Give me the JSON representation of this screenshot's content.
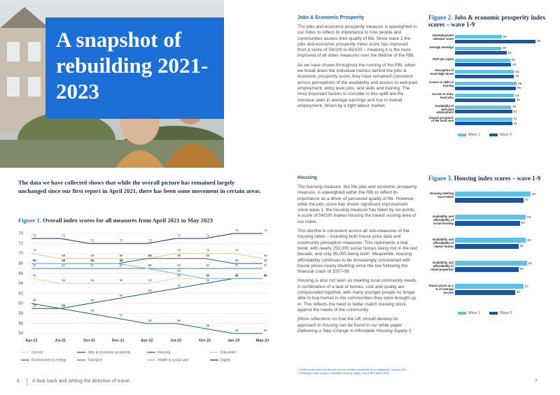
{
  "cover": {
    "title": "A snapshot of rebuilding 2021-2023"
  },
  "intro": "The data we have collected shows that while the overall picture has remained largely unchanged since our first report in April 2021, there has been some movement in certain areas.",
  "jobs_section": {
    "heading": "Jobs & Economic Prosperity",
    "paragraphs": [
      "The jobs and economic prosperity measure is upweighted in our index to reflect its importance to how people and communities assess their quality of life. Since wave 1 the jobs and economic prosperity index score has improved from a score of 59/100 to 65/100 – meaning it is the most improved of all index measures over the lifetime of the RBI.",
      "As we have shown throughout the running of the RBI, when we break down the individual metrics behind the jobs & economic prosperity score, they have remained consistent across perceptions of the availability and access to well-paid employment, entry level jobs, and skills and training. The most important factors to consider in this uplift are the increase seen in average earnings and rise in overall employment, driven by a tight labour market."
    ]
  },
  "housing_section": {
    "heading": "Housing",
    "paragraphs": [
      "The housing measure, like the jobs and economic prosperity measure, is upweighted within the RBI to reflect its importance as a driver of perceived quality of life. However, while the jobs score has shown significant improvement since wave 1, the housing measure has fallen by six-points. A score of 54/100 makes housing the lowest scoring area of our index.",
      "This decline is consistent across all sub-measures of the housing index – including both house price data and community perception measures. This represents a real trend, with nearly 250,000 social homes being lost in the last decade, and only 85,000 being built¹. Meanwhile, housing affordability continues to be increasingly constrained with house prices nearly doubling since the low following the financial crash of 2007-08.",
      "Housing is also not seen as meeting local community needs. A combination of a lack of homes, cost and quality are compounded together, with many younger people no longer able to buy homes in the communities they were brought up in. This reflects the need to better match housing stock against the needs of the community.",
      "[More reflections on how the UK should develop its approach to housing can be found in our white paper Delivering a Step-Change in Affordable Housing Supply.²]"
    ]
  },
  "footnotes": [
    "¹ 14,000 social homes lost last year as over a million households sit on waiting lists, January 2023",
    "² Delivering a Step Change in Affordable Housing Supply, L&Q & BPF March 2023"
  ],
  "footer": {
    "left_page_number": "6",
    "left_text": "A look back and setting the direction of travel",
    "right_page_number": "7"
  },
  "chart_data": [
    {
      "type": "line",
      "figure_label": "Figure 1.",
      "title": "Overall index scores for all measures from April 2021 to May 2023",
      "categories": [
        "Apr-21",
        "Jul-21",
        "Oct-21",
        "Dec-21",
        "Apr-22",
        "Jul-22",
        "Oct-22",
        "Jan-23",
        "May-23"
      ],
      "ylim": [
        54,
        74
      ],
      "yticks": [
        54,
        56,
        58,
        60,
        62,
        64,
        66,
        68,
        70,
        72,
        74
      ],
      "grid": true,
      "series": [
        {
          "name": "Overall",
          "color": "#c9b45c",
          "dashed": true,
          "values": [
            65,
            64,
            64,
            64,
            64,
            65,
            65,
            65,
            65
          ]
        },
        {
          "name": "Jobs & economic prosperity",
          "color": "#1f4e8c",
          "values": [
            59,
            59,
            60,
            61,
            62,
            63,
            64,
            65,
            65
          ]
        },
        {
          "name": "Housing",
          "color": "#1e6b3a",
          "values": [
            60,
            59,
            58,
            57,
            56,
            56,
            55,
            54,
            54
          ]
        },
        {
          "name": "Education",
          "color": "#d9c98a",
          "values": [
            70,
            69,
            69,
            69,
            69,
            70,
            70,
            70,
            69
          ]
        },
        {
          "name": "Environment & energy",
          "color": "#2a5c8a",
          "values": [
            68,
            68,
            68,
            68,
            69,
            69,
            69,
            68,
            68
          ]
        },
        {
          "name": "Transport",
          "color": "#3a78c2",
          "values": [
            67,
            67,
            67,
            67,
            67,
            67,
            67,
            67,
            67
          ]
        },
        {
          "name": "Health & social care",
          "color": "#6fb7dd",
          "values": [
            68,
            68,
            68,
            68,
            67,
            66,
            65,
            65,
            65
          ]
        },
        {
          "name": "Digital",
          "color": "#0d3060",
          "values": [
            73,
            73,
            72,
            72,
            72,
            73,
            73,
            74,
            74
          ]
        }
      ]
    },
    {
      "type": "hbar",
      "figure_label": "Figure 2.",
      "title": "Jobs & economic prosperity index scores – wave 1-9",
      "categories": [
        "Unemployment claimant count",
        "Average earnings",
        "GDP per capita",
        "Perception of local High Street",
        "Access to skills & training",
        "Access to entry level jobs",
        "Availability of well-paid employment",
        "Overall prospects of the local area"
      ],
      "series": [
        {
          "name": "Wave 1",
          "color": "#5bc3e8",
          "values": [
            50,
            49,
            59,
            63,
            66,
            63,
            60,
            61
          ]
        },
        {
          "name": "Wave 9",
          "color": "#1a56a8",
          "values": [
            86,
            55,
            60,
            63,
            65,
            64,
            61,
            61
          ]
        }
      ]
    },
    {
      "type": "hbar",
      "figure_label": "Figure 3.",
      "title": "Housing index scores – wave 1-9",
      "categories": [
        "Housing meeting local needs",
        "Availability and affordability of social housing",
        "Availability and affordability of starter homes",
        "Availability and affordability of rental properties",
        "House prices as a % of average income"
      ],
      "series": [
        {
          "name": "Wave 1",
          "color": "#5bc3e8",
          "values": [
            63,
            59,
            59,
            60,
            57
          ]
        },
        {
          "name": "Wave 9",
          "color": "#1a56a8",
          "values": [
            57,
            54,
            53,
            53,
            50
          ]
        }
      ]
    }
  ]
}
